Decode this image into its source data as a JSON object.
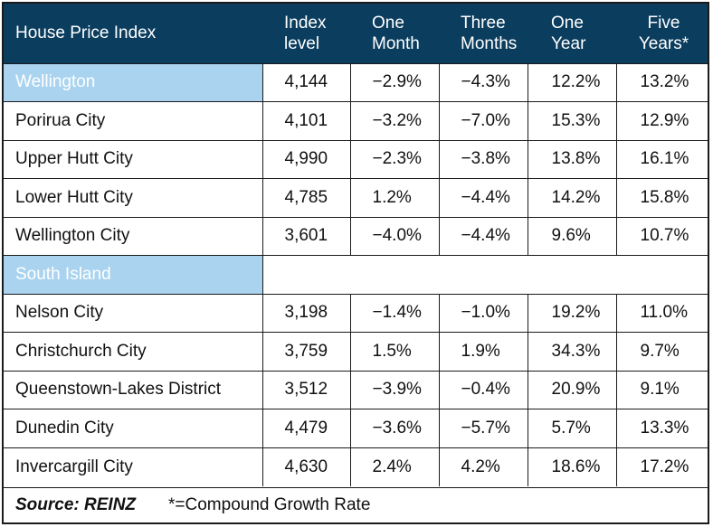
{
  "header": {
    "title": "House Price Index",
    "col1": [
      "Index",
      "level"
    ],
    "col2": [
      "One",
      "Month"
    ],
    "col3": [
      "Three",
      "Months"
    ],
    "col4": [
      "One",
      "Year"
    ],
    "col5": [
      "Five",
      "Years*"
    ]
  },
  "rows": [
    {
      "name": "Wellington",
      "region": true,
      "index": "4,144",
      "m1": "−2.9%",
      "m3": "−4.3%",
      "y1": "12.2%",
      "y5": "13.2%"
    },
    {
      "name": "Porirua City",
      "index": "4,101",
      "m1": "−3.2%",
      "m3": "−7.0%",
      "y1": "15.3%",
      "y5": "12.9%"
    },
    {
      "name": "Upper Hutt City",
      "index": "4,990",
      "m1": "−2.3%",
      "m3": "−3.8%",
      "y1": "13.8%",
      "y5": "16.1%"
    },
    {
      "name": "Lower Hutt City",
      "index": "4,785",
      "m1": "1.2%",
      "m3": "−4.4%",
      "y1": "14.2%",
      "y5": "15.8%"
    },
    {
      "name": "Wellington City",
      "index": "3,601",
      "m1": "−4.0%",
      "m3": "−4.4%",
      "y1": "9.6%",
      "y5": "10.7%"
    },
    {
      "name": "South Island",
      "region": true,
      "index": "",
      "m1": "",
      "m3": "",
      "y1": "",
      "y5": ""
    },
    {
      "name": "Nelson City",
      "index": "3,198",
      "m1": "−1.4%",
      "m3": "−1.0%",
      "y1": "19.2%",
      "y5": "11.0%"
    },
    {
      "name": "Christchurch City",
      "index": "3,759",
      "m1": "1.5%",
      "m3": "1.9%",
      "y1": "34.3%",
      "y5": "9.7%"
    },
    {
      "name": "Queenstown-Lakes District",
      "index": "3,512",
      "m1": "−3.9%",
      "m3": "−0.4%",
      "y1": "20.9%",
      "y5": "9.1%"
    },
    {
      "name": "Dunedin City",
      "index": "4,479",
      "m1": "−3.6%",
      "m3": "−5.7%",
      "y1": "5.7%",
      "y5": "13.3%"
    },
    {
      "name": "Invercargill City",
      "index": "4,630",
      "m1": "2.4%",
      "m3": "4.2%",
      "y1": "18.6%",
      "y5": "17.2%"
    }
  ],
  "footer": {
    "source": "Source: REINZ",
    "note": "*=Compound Growth Rate"
  },
  "colors": {
    "header_bg": "#0b3d5e",
    "region_bg": "#a9d3ee"
  }
}
